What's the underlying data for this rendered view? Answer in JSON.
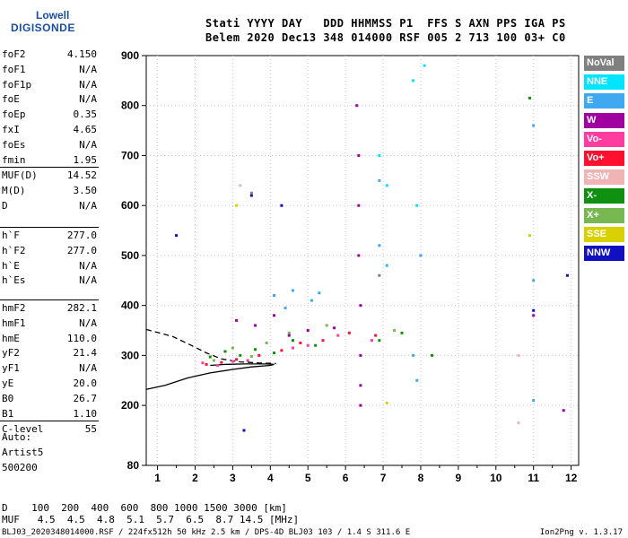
{
  "logo": {
    "line1": "Lowell",
    "line2": "DIGISONDE"
  },
  "header": {
    "labels": "Stati YYYY DAY   DDD HHMMSS P1  FFS S AXN PPS IGA PS",
    "values": "Belem 2020 Dec13 348 014000 RSF 005 2 713 100 03+ C0"
  },
  "params_group1": [
    {
      "name": "foF2",
      "value": "4.150"
    },
    {
      "name": "foF1",
      "value": "N/A"
    },
    {
      "name": "foF1p",
      "value": "N/A"
    },
    {
      "name": "foE",
      "value": "N/A"
    },
    {
      "name": "foEp",
      "value": "0.35"
    },
    {
      "name": "fxI",
      "value": "4.65"
    },
    {
      "name": "foEs",
      "value": "N/A"
    },
    {
      "name": "fmin",
      "value": "1.95"
    }
  ],
  "params_group2": [
    {
      "name": "MUF(D)",
      "value": "14.52"
    },
    {
      "name": "M(D)",
      "value": "3.50"
    },
    {
      "name": "D",
      "value": "N/A"
    }
  ],
  "params_group3": [
    {
      "name": "h`F",
      "value": "277.0"
    },
    {
      "name": "h`F2",
      "value": "277.0"
    },
    {
      "name": "h`E",
      "value": "N/A"
    },
    {
      "name": "h`Es",
      "value": "N/A"
    }
  ],
  "params_group4": [
    {
      "name": "hmF2",
      "value": "282.1"
    },
    {
      "name": "hmF1",
      "value": "N/A"
    },
    {
      "name": "hmE",
      "value": "110.0"
    },
    {
      "name": "yF2",
      "value": "21.4"
    },
    {
      "name": "yF1",
      "value": "N/A"
    },
    {
      "name": "yE",
      "value": "20.0"
    },
    {
      "name": "B0",
      "value": "26.7"
    },
    {
      "name": "B1",
      "value": "1.10"
    }
  ],
  "params_group5": [
    {
      "name": "C-level",
      "value": "55"
    }
  ],
  "auto": {
    "line1": "Auto:",
    "line2": "Artist5",
    "line3": "500200"
  },
  "legend": [
    {
      "label": "NoVal",
      "color": "#808080"
    },
    {
      "label": "NNE",
      "color": "#00e5ff"
    },
    {
      "label": "E",
      "color": "#3ea8f0"
    },
    {
      "label": "W",
      "color": "#a000a0"
    },
    {
      "label": "Vo-",
      "color": "#ff3ca0"
    },
    {
      "label": "Vo+",
      "color": "#ff1030"
    },
    {
      "label": "SSW",
      "color": "#f0b4b4"
    },
    {
      "label": "X-",
      "color": "#109010"
    },
    {
      "label": "X+",
      "color": "#78b850"
    },
    {
      "label": "SSE",
      "color": "#d8d000"
    },
    {
      "label": "NNW",
      "color": "#1010c0"
    }
  ],
  "bottom": {
    "d_line": "D    100  200  400  600  800 1000 1500 3000 [km]",
    "muf_line": "MUF   4.5  4.5  4.8  5.1  5.7  6.5  8.7 14.5 [MHz]",
    "footer_left": "BLJ03_2020348014000.RSF / 224fx512h 50 kHz 2.5 km / DPS-4D BLJ03 103 / 1.4 S 311.6 E",
    "footer_right": "Ion2Png v. 1.3.17"
  },
  "chart_data": {
    "type": "scatter",
    "xlim": [
      0.7,
      12.2
    ],
    "ylim": [
      80,
      900
    ],
    "x_ticks": [
      1,
      2,
      3,
      4,
      5,
      6,
      7,
      8,
      9,
      10,
      11,
      12
    ],
    "y_ticks": [
      80,
      200,
      300,
      400,
      500,
      600,
      700,
      800,
      900
    ],
    "grid": true,
    "legend_position": "right",
    "series": [
      {
        "name": "X-",
        "points": [
          [
            2.4,
            297
          ],
          [
            2.8,
            308
          ],
          [
            3.2,
            300
          ],
          [
            3.6,
            312
          ],
          [
            4.1,
            305
          ],
          [
            4.6,
            330
          ],
          [
            5.2,
            320
          ],
          [
            6.9,
            330
          ],
          [
            7.5,
            345
          ],
          [
            8.3,
            300
          ],
          [
            10.9,
            815
          ]
        ]
      },
      {
        "name": "X+",
        "points": [
          [
            2.5,
            290
          ],
          [
            3.0,
            315
          ],
          [
            3.5,
            298
          ],
          [
            3.9,
            325
          ],
          [
            4.5,
            345
          ],
          [
            5.5,
            360
          ],
          [
            7.3,
            350
          ]
        ]
      },
      {
        "name": "NNE",
        "points": [
          [
            6.9,
            700
          ],
          [
            7.1,
            640
          ],
          [
            7.8,
            850
          ],
          [
            7.9,
            600
          ],
          [
            8.1,
            880
          ]
        ]
      },
      {
        "name": "E",
        "points": [
          [
            4.1,
            420
          ],
          [
            4.4,
            395
          ],
          [
            4.6,
            430
          ],
          [
            5.1,
            410
          ],
          [
            5.3,
            425
          ],
          [
            6.9,
            650
          ],
          [
            6.9,
            520
          ],
          [
            7.1,
            480
          ],
          [
            7.8,
            300
          ],
          [
            7.9,
            250
          ],
          [
            8.0,
            500
          ],
          [
            11.0,
            760
          ],
          [
            11.0,
            450
          ],
          [
            11.0,
            210
          ]
        ]
      },
      {
        "name": "W",
        "points": [
          [
            3.1,
            370
          ],
          [
            3.6,
            360
          ],
          [
            4.1,
            380
          ],
          [
            4.5,
            340
          ],
          [
            5.0,
            350
          ],
          [
            5.7,
            355
          ],
          [
            6.3,
            800
          ],
          [
            6.35,
            700
          ],
          [
            6.35,
            600
          ],
          [
            6.35,
            500
          ],
          [
            6.4,
            400
          ],
          [
            6.4,
            300
          ],
          [
            6.4,
            240
          ],
          [
            6.4,
            200
          ],
          [
            11.0,
            380
          ],
          [
            11.8,
            190
          ]
        ]
      },
      {
        "name": "Vo-",
        "points": [
          [
            2.2,
            285
          ],
          [
            2.6,
            280
          ],
          [
            3.0,
            288
          ],
          [
            3.4,
            290
          ],
          [
            4.6,
            315
          ],
          [
            5.0,
            320
          ],
          [
            5.8,
            340
          ],
          [
            6.7,
            330
          ]
        ]
      },
      {
        "name": "Vo+",
        "points": [
          [
            2.3,
            282
          ],
          [
            2.7,
            286
          ],
          [
            3.1,
            292
          ],
          [
            3.7,
            300
          ],
          [
            4.3,
            310
          ],
          [
            4.8,
            325
          ],
          [
            5.4,
            330
          ],
          [
            6.1,
            345
          ],
          [
            6.8,
            340
          ]
        ]
      },
      {
        "name": "SSW",
        "points": [
          [
            3.2,
            640
          ],
          [
            10.6,
            300
          ],
          [
            10.6,
            165
          ]
        ]
      },
      {
        "name": "SSE",
        "points": [
          [
            3.1,
            600
          ],
          [
            7.1,
            205
          ],
          [
            10.9,
            540
          ]
        ]
      },
      {
        "name": "NNW",
        "points": [
          [
            1.5,
            540
          ],
          [
            3.5,
            620
          ],
          [
            4.3,
            600
          ],
          [
            3.3,
            150
          ],
          [
            11.0,
            390
          ],
          [
            11.9,
            460
          ]
        ]
      },
      {
        "name": "NoVal",
        "points": [
          [
            3.5,
            625
          ],
          [
            6.9,
            460
          ]
        ]
      }
    ],
    "curves": [
      {
        "name": "profile",
        "style": "solid",
        "points": [
          [
            0.7,
            232
          ],
          [
            1.2,
            240
          ],
          [
            1.8,
            255
          ],
          [
            2.4,
            265
          ],
          [
            3.0,
            272
          ],
          [
            3.5,
            277
          ],
          [
            4.0,
            280
          ],
          [
            4.1,
            282
          ],
          [
            3.9,
            283
          ],
          [
            3.3,
            283
          ],
          [
            2.8,
            282
          ],
          [
            2.4,
            280
          ]
        ]
      },
      {
        "name": "trace",
        "style": "dashed",
        "points": [
          [
            0.7,
            352
          ],
          [
            1.4,
            338
          ],
          [
            1.9,
            320
          ],
          [
            2.3,
            305
          ],
          [
            2.7,
            293
          ],
          [
            3.2,
            287
          ],
          [
            3.7,
            285
          ],
          [
            4.15,
            284
          ]
        ]
      }
    ]
  }
}
